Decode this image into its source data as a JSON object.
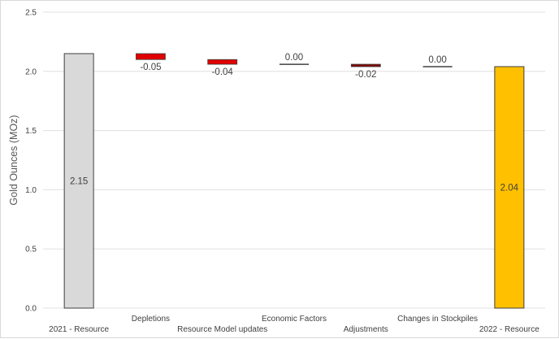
{
  "chart_data": {
    "type": "bar",
    "subtype": "waterfall",
    "title": "",
    "xlabel": "",
    "ylabel": "Gold Ounces (MOz)",
    "ylim": [
      0,
      2.5
    ],
    "yticks": [
      "0.0",
      "0.5",
      "1.0",
      "1.5",
      "2.0",
      "2.5"
    ],
    "grid": true,
    "legend": "none",
    "categories": [
      "2021 - Resource",
      "Depletions",
      "Resource Model updates",
      "Economic Factors",
      "Adjustments",
      "Changes in Stockpiles",
      "2022 - Resource"
    ],
    "values": [
      2.15,
      -0.05,
      -0.04,
      0.0,
      -0.02,
      0.0,
      2.04
    ],
    "labels": [
      "2.15",
      "-0.05",
      "-0.04",
      "0.00",
      "-0.02",
      "0.00",
      "2.04"
    ],
    "bar_kind": [
      "total",
      "change",
      "change",
      "change",
      "change",
      "change",
      "total"
    ],
    "colors": {
      "start_total": "#d9d9d9",
      "decrease": "#e00000",
      "zero_change": "#7f0000",
      "end_total": "#ffc000",
      "bar_outline": "#404040",
      "grid": "#e0e0e0"
    }
  }
}
